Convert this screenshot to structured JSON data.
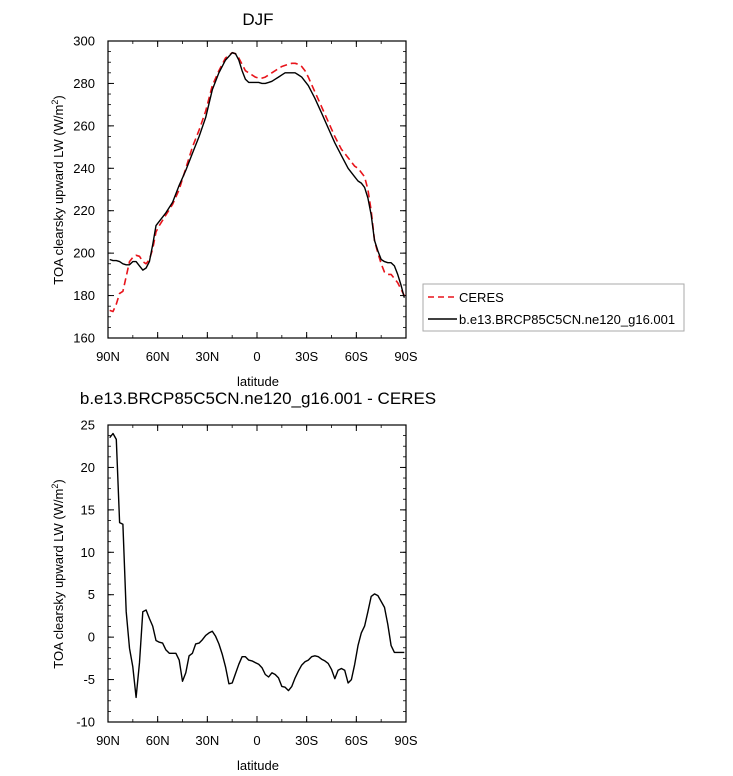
{
  "chart_data": [
    {
      "type": "line",
      "title": "DJF",
      "xlabel": "latitude",
      "ylabel": "TOA clearsky upward LW (W/m²)",
      "xlim": [
        90,
        -90
      ],
      "ylim": [
        160,
        300
      ],
      "x_ticks": [
        90,
        60,
        30,
        0,
        -30,
        -60,
        -90
      ],
      "x_tick_labels": [
        "90N",
        "60N",
        "30N",
        "0",
        "30S",
        "60S",
        "90S"
      ],
      "y_ticks": [
        160,
        180,
        200,
        220,
        240,
        260,
        280,
        300
      ],
      "y_tick_labels": [
        "160",
        "180",
        "200",
        "220",
        "240",
        "260",
        "280",
        "300"
      ],
      "legend_position": "right",
      "series": [
        {
          "name": "CERES",
          "color": "#e8141b",
          "dash": true,
          "x": [
            89,
            87,
            85,
            83,
            81,
            79,
            77,
            75,
            73,
            71,
            69,
            67,
            65,
            63,
            61,
            59,
            55,
            51,
            47,
            43,
            39,
            35,
            31,
            27,
            23,
            19,
            15,
            13,
            11,
            9,
            7,
            5,
            3,
            1,
            -1,
            -3,
            -5,
            -7,
            -9,
            -11,
            -13,
            -15,
            -17,
            -19,
            -21,
            -23,
            -25,
            -27,
            -29,
            -31,
            -35,
            -39,
            -43,
            -47,
            -51,
            -55,
            -59,
            -61,
            -63,
            -65,
            -67,
            -69,
            -71,
            -73,
            -75,
            -77,
            -79,
            -81,
            -83,
            -85,
            -87,
            -89
          ],
          "y": [
            173,
            172.5,
            176,
            181,
            182,
            189,
            196,
            198,
            199,
            198.5,
            196,
            195,
            197,
            202,
            210,
            213,
            218,
            223,
            230,
            240,
            250,
            258,
            267,
            279,
            286,
            292,
            294.5,
            294,
            292,
            289,
            286,
            285,
            284,
            283,
            282.5,
            282.5,
            283,
            284,
            285,
            286,
            287,
            288,
            288.5,
            289,
            289.5,
            289.5,
            289,
            288,
            286,
            283,
            276,
            269,
            262,
            255,
            249,
            245,
            241,
            240,
            238,
            236,
            230,
            220,
            206,
            200,
            195,
            191,
            190,
            190,
            188,
            186,
            183,
            180
          ]
        },
        {
          "name": "b.e13.BRCP85C5CN.ne120_g16.001",
          "color": "#000000",
          "dash": false,
          "x": [
            89,
            87,
            85,
            83,
            81,
            79,
            77,
            75,
            73,
            71,
            69,
            67,
            65,
            63,
            61,
            59,
            55,
            51,
            47,
            43,
            39,
            35,
            31,
            27,
            23,
            19,
            15,
            13,
            11,
            9,
            7,
            5,
            3,
            1,
            -1,
            -3,
            -5,
            -7,
            -9,
            -11,
            -13,
            -15,
            -17,
            -19,
            -21,
            -23,
            -25,
            -27,
            -29,
            -31,
            -35,
            -39,
            -43,
            -47,
            -51,
            -55,
            -59,
            -61,
            -63,
            -65,
            -67,
            -69,
            -71,
            -73,
            -75,
            -77,
            -79,
            -81,
            -83,
            -85,
            -87,
            -89
          ],
          "y": [
            197,
            196.5,
            196.5,
            196,
            195,
            194.5,
            194.5,
            196,
            196,
            194,
            192,
            193,
            196,
            204,
            213,
            215,
            219,
            224,
            232,
            239,
            247,
            255,
            264,
            277,
            285,
            291,
            294.5,
            294,
            291,
            286,
            282,
            280.5,
            280.5,
            280.5,
            280.5,
            280,
            280,
            280.5,
            281,
            282,
            283,
            284,
            285,
            285,
            285,
            285,
            284,
            283,
            281,
            279,
            273,
            266,
            259,
            252,
            246,
            240,
            236,
            234,
            233,
            231,
            226,
            218,
            206,
            201,
            197,
            196,
            195.5,
            195.5,
            194,
            190,
            185,
            179
          ]
        }
      ]
    },
    {
      "type": "line",
      "title": "b.e13.BRCP85C5CN.ne120_g16.001 - CERES",
      "xlabel": "latitude",
      "ylabel": "TOA clearsky upward LW (W/m²)",
      "xlim": [
        90,
        -90
      ],
      "ylim": [
        -10,
        25
      ],
      "x_ticks": [
        90,
        60,
        30,
        0,
        -30,
        -60,
        -90
      ],
      "x_tick_labels": [
        "90N",
        "60N",
        "30N",
        "0",
        "30S",
        "60S",
        "90S"
      ],
      "y_ticks": [
        -10,
        -5,
        0,
        5,
        10,
        15,
        20,
        25
      ],
      "y_tick_labels": [
        "-10",
        "-5",
        "0",
        "5",
        "10",
        "15",
        "20",
        "25"
      ],
      "series": [
        {
          "color": "#000000",
          "dash": false,
          "x": [
            89,
            87,
            85,
            83,
            81,
            79,
            77,
            75,
            73,
            71,
            69,
            67,
            65,
            63,
            61,
            59,
            57,
            55,
            53,
            51,
            49,
            47,
            45,
            43,
            41,
            39,
            37,
            35,
            33,
            31,
            29,
            27,
            25,
            23,
            21,
            19,
            17,
            15,
            13,
            11,
            9,
            7,
            5,
            3,
            1,
            -1,
            -3,
            -5,
            -7,
            -9,
            -11,
            -13,
            -15,
            -17,
            -19,
            -21,
            -23,
            -25,
            -27,
            -29,
            -31,
            -33,
            -35,
            -37,
            -39,
            -41,
            -43,
            -45,
            -47,
            -49,
            -51,
            -53,
            -55,
            -57,
            -59,
            -61,
            -63,
            -65,
            -67,
            -69,
            -71,
            -73,
            -75,
            -77,
            -79,
            -81,
            -83,
            -85,
            -87,
            -89
          ],
          "y": [
            23.5,
            24,
            23.3,
            13.5,
            13.3,
            3,
            -1.3,
            -3.5,
            -7.1,
            -3,
            3,
            3.2,
            2.2,
            1.3,
            -0.4,
            -0.6,
            -0.7,
            -1.5,
            -1.9,
            -1.9,
            -1.9,
            -2.7,
            -5.2,
            -4.2,
            -2.2,
            -1.9,
            -0.8,
            -0.7,
            -0.3,
            0.2,
            0.5,
            0.7,
            0.1,
            -0.8,
            -2,
            -3.5,
            -5.5,
            -5.4,
            -4.3,
            -3.2,
            -2.3,
            -2.3,
            -2.7,
            -2.8,
            -3,
            -3.2,
            -3.6,
            -4.4,
            -4.7,
            -4.2,
            -4.4,
            -4.8,
            -5.8,
            -5.9,
            -6.3,
            -5.8,
            -4.8,
            -4,
            -3.3,
            -2.9,
            -2.7,
            -2.3,
            -2.2,
            -2.3,
            -2.6,
            -2.8,
            -3.1,
            -3.8,
            -4.9,
            -3.9,
            -3.7,
            -3.9,
            -5.4,
            -5,
            -3.2,
            -1,
            0.5,
            1.3,
            3,
            4.8,
            5.1,
            4.9,
            4.2,
            3.5,
            1.5,
            -1,
            -1.8,
            -1.8,
            -1.8,
            -1.8
          ]
        }
      ]
    }
  ]
}
